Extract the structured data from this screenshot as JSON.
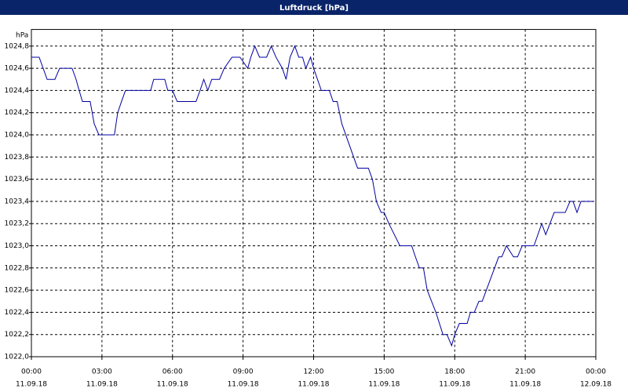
{
  "chart_data": {
    "type": "line",
    "title": "Luftdruck [hPa]",
    "y_label": "hPa",
    "xlim": [
      0,
      24
    ],
    "ylim": [
      1022.0,
      1024.95
    ],
    "xticks": [
      {
        "value": 0,
        "label": "00:00"
      },
      {
        "value": 3,
        "label": "03:00"
      },
      {
        "value": 6,
        "label": "06:00"
      },
      {
        "value": 9,
        "label": "09:00"
      },
      {
        "value": 12,
        "label": "12:00"
      },
      {
        "value": 15,
        "label": "15:00"
      },
      {
        "value": 18,
        "label": "18:00"
      },
      {
        "value": 21,
        "label": "21:00"
      },
      {
        "value": 24,
        "label": "00:00"
      }
    ],
    "xtick_dates": [
      "11.09.18",
      "11.09.18",
      "11.09.18",
      "11.09.18",
      "11.09.18",
      "11.09.18",
      "11.09.18",
      "11.09.18",
      "12.09.18"
    ],
    "yticks": [
      {
        "value": 1022.0,
        "label": "1022,0"
      },
      {
        "value": 1022.2,
        "label": "1022,2"
      },
      {
        "value": 1022.4,
        "label": "1022,4"
      },
      {
        "value": 1022.6,
        "label": "1022,6"
      },
      {
        "value": 1022.8,
        "label": "1022,8"
      },
      {
        "value": 1023.0,
        "label": "1023,0"
      },
      {
        "value": 1023.2,
        "label": "1023,2"
      },
      {
        "value": 1023.4,
        "label": "1023,4"
      },
      {
        "value": 1023.6,
        "label": "1023,6"
      },
      {
        "value": 1023.8,
        "label": "1023,8"
      },
      {
        "value": 1024.0,
        "label": "1024,0"
      },
      {
        "value": 1024.2,
        "label": "1024,2"
      },
      {
        "value": 1024.4,
        "label": "1024,4"
      },
      {
        "value": 1024.6,
        "label": "1024,6"
      },
      {
        "value": 1024.8,
        "label": "1024,8"
      }
    ],
    "grid": true,
    "series": [
      {
        "color": "#0000a0",
        "x": [
          0,
          0.33,
          0.67,
          1.0,
          1.2,
          1.73,
          1.9,
          2.03,
          2.17,
          2.5,
          2.67,
          2.87,
          3.53,
          3.67,
          3.83,
          4.0,
          5.07,
          5.2,
          5.67,
          5.8,
          6.0,
          6.2,
          7.0,
          7.17,
          7.33,
          7.5,
          7.67,
          8.0,
          8.2,
          8.53,
          8.87,
          9.2,
          9.33,
          9.5,
          9.7,
          10.0,
          10.2,
          10.4,
          10.67,
          10.83,
          11.0,
          11.2,
          11.37,
          11.53,
          11.67,
          11.87,
          12.0,
          12.33,
          12.67,
          12.83,
          13.0,
          13.2,
          13.87,
          14.33,
          14.5,
          14.67,
          14.87,
          15.0,
          15.2,
          15.67,
          16.17,
          16.33,
          16.5,
          16.67,
          16.83,
          17.2,
          17.5,
          17.67,
          17.87,
          18.0,
          18.2,
          18.53,
          18.67,
          18.83,
          19.03,
          19.17,
          19.87,
          20.0,
          20.2,
          20.5,
          20.67,
          20.87,
          21.37,
          21.7,
          21.87,
          22.23,
          22.7,
          22.9,
          23.03,
          23.2,
          23.37,
          23.9
        ],
        "values": [
          1024.7,
          1024.7,
          1024.5,
          1024.5,
          1024.6,
          1024.6,
          1024.5,
          1024.4,
          1024.3,
          1024.3,
          1024.1,
          1024.0,
          1024.0,
          1024.2,
          1024.3,
          1024.4,
          1024.4,
          1024.5,
          1024.5,
          1024.4,
          1024.4,
          1024.3,
          1024.3,
          1024.4,
          1024.5,
          1024.4,
          1024.5,
          1024.5,
          1024.6,
          1024.7,
          1024.7,
          1024.6,
          1024.7,
          1024.8,
          1024.7,
          1024.7,
          1024.8,
          1024.7,
          1024.6,
          1024.5,
          1024.7,
          1024.8,
          1024.7,
          1024.7,
          1024.6,
          1024.7,
          1024.6,
          1024.4,
          1024.4,
          1024.3,
          1024.3,
          1024.1,
          1023.7,
          1023.7,
          1023.6,
          1023.4,
          1023.3,
          1023.3,
          1023.2,
          1023.0,
          1023.0,
          1022.9,
          1022.8,
          1022.8,
          1022.6,
          1022.4,
          1022.2,
          1022.2,
          1022.1,
          1022.2,
          1022.3,
          1022.3,
          1022.4,
          1022.4,
          1022.5,
          1022.5,
          1022.9,
          1022.9,
          1023.0,
          1022.9,
          1022.9,
          1023.0,
          1023.0,
          1023.2,
          1023.1,
          1023.3,
          1023.3,
          1023.4,
          1023.4,
          1023.3,
          1023.4,
          1023.4
        ]
      }
    ]
  }
}
